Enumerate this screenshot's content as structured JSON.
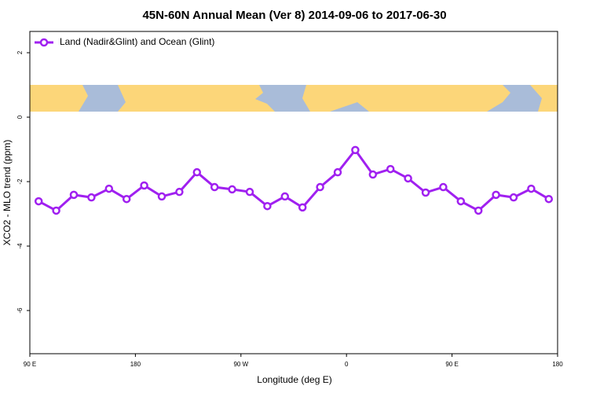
{
  "chart_data": {
    "type": "line",
    "title": "45N-60N Annual Mean (Ver 8)   2014-09-06 to 2017-06-30",
    "xlabel": "Longitude (deg E)",
    "ylabel": "XCO2 - MLO trend (ppm)",
    "x": [
      97.5,
      112.5,
      127.5,
      142.5,
      157.5,
      172.5,
      187.5,
      202.5,
      217.5,
      232.5,
      247.5,
      262.5,
      277.5,
      292.5,
      307.5,
      322.5,
      337.5,
      352.5,
      367.5,
      382.5,
      397.5,
      412.5,
      427.5,
      442.5,
      457.5,
      472.5,
      487.5,
      502.5,
      517.5,
      532.5
    ],
    "series": [
      {
        "name": "Land (Nadir&Glint) and Ocean (Glint)",
        "color": "#a020f0",
        "values": [
          -2.61,
          -2.9,
          -2.41,
          -2.49,
          -2.22,
          -2.54,
          -2.12,
          -2.46,
          -2.32,
          -1.71,
          -2.17,
          -2.24,
          -2.32,
          -2.76,
          -2.46,
          -2.8,
          -2.17,
          -1.71,
          -1.02,
          -1.78,
          -1.61,
          -1.9,
          -2.34,
          -2.17,
          -2.61,
          -2.9,
          -2.41,
          -2.49,
          -2.22,
          -2.54
        ]
      }
    ],
    "xlim": [
      90,
      540
    ],
    "xticks": [
      {
        "value": 90,
        "label": "90 E"
      },
      {
        "value": 180,
        "label": "180"
      },
      {
        "value": 270,
        "label": "90 W"
      },
      {
        "value": 360,
        "label": "0"
      },
      {
        "value": 450,
        "label": "90 E"
      },
      {
        "value": 540,
        "label": "180"
      }
    ],
    "ylim": [
      -7.34,
      2.66
    ],
    "yticks": [
      2,
      0,
      -2,
      -4,
      -6
    ],
    "legend": "top-left"
  }
}
